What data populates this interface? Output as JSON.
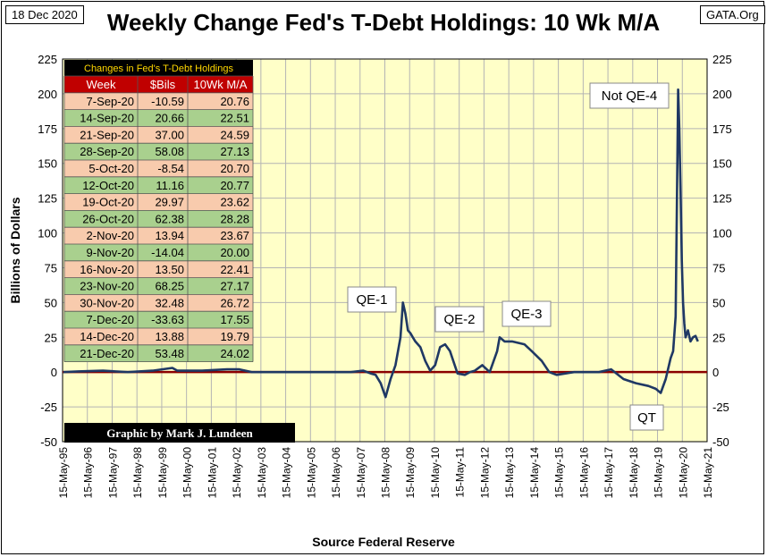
{
  "header": {
    "date": "18 Dec 2020",
    "title": "Weekly Change Fed's T-Debt Holdings: 10 Wk M/A",
    "source_site": "GATA.Org"
  },
  "footer": {
    "source": "Source Federal Reserve"
  },
  "credit": "Graphic by Mark J. Lundeen",
  "colors": {
    "plot_bg": "#ffffc8",
    "grid": "#b4b4b4",
    "line": "#1f3864",
    "zero_line": "#8b0000",
    "table_header_bg": "#000000",
    "table_header_text": "#ffd700",
    "col_head_bg": "#c00000",
    "row_even": "#f8cbad",
    "row_odd": "#a9d08e"
  },
  "table": {
    "title": "Changes in Fed's T-Debt Holdings",
    "columns": [
      "Week",
      "$Bils",
      "10Wk M/A"
    ],
    "rows": [
      [
        "7-Sep-20",
        "-10.59",
        "20.76"
      ],
      [
        "14-Sep-20",
        "20.66",
        "22.51"
      ],
      [
        "21-Sep-20",
        "37.00",
        "24.59"
      ],
      [
        "28-Sep-20",
        "58.08",
        "27.13"
      ],
      [
        "5-Oct-20",
        "-8.54",
        "20.70"
      ],
      [
        "12-Oct-20",
        "11.16",
        "20.77"
      ],
      [
        "19-Oct-20",
        "29.97",
        "23.62"
      ],
      [
        "26-Oct-20",
        "62.38",
        "28.28"
      ],
      [
        "2-Nov-20",
        "13.94",
        "23.67"
      ],
      [
        "9-Nov-20",
        "-14.04",
        "20.00"
      ],
      [
        "16-Nov-20",
        "13.50",
        "22.41"
      ],
      [
        "23-Nov-20",
        "68.25",
        "27.17"
      ],
      [
        "30-Nov-20",
        "32.48",
        "26.72"
      ],
      [
        "7-Dec-20",
        "-33.63",
        "17.55"
      ],
      [
        "14-Dec-20",
        "13.88",
        "19.79"
      ],
      [
        "21-Dec-20",
        "53.48",
        "24.02"
      ]
    ]
  },
  "chart_data": {
    "type": "line",
    "title": "Weekly Change Fed's T-Debt Holdings: 10 Wk M/A",
    "ylabel": "Billions of Dollars",
    "xlabel": "",
    "ylim": [
      -50,
      225
    ],
    "xlim": [
      1995.37,
      2021.37
    ],
    "yticks": [
      -50,
      -25,
      0,
      25,
      50,
      75,
      100,
      125,
      150,
      175,
      200,
      225
    ],
    "ytick_labels": [
      "-50",
      "-25",
      "0",
      "25",
      "50",
      "75",
      "100",
      "125",
      "150",
      "175",
      "200",
      "225"
    ],
    "xtick_labels": [
      "15-May-95",
      "15-May-96",
      "15-May-97",
      "15-May-98",
      "15-May-99",
      "15-May-00",
      "15-May-01",
      "15-May-02",
      "15-May-03",
      "15-May-04",
      "15-May-05",
      "15-May-06",
      "15-May-07",
      "15-May-08",
      "15-May-09",
      "15-May-10",
      "15-May-11",
      "15-May-12",
      "15-May-13",
      "15-May-14",
      "15-May-15",
      "15-May-16",
      "15-May-17",
      "15-May-18",
      "15-May-19",
      "15-May-20",
      "15-May-21"
    ],
    "grid": true,
    "series": [
      {
        "x": [
          1995.4,
          1996.0,
          1997.0,
          1998.0,
          1999.0,
          1999.8,
          2000.0,
          2001.0,
          2002.0,
          2002.5,
          2003.0,
          2004.0,
          2005.0,
          2006.0,
          2007.0,
          2007.5,
          2007.8,
          2008.0,
          2008.2,
          2008.4,
          2008.6,
          2008.8,
          2009.0,
          2009.1,
          2009.2,
          2009.3,
          2009.4,
          2009.5,
          2009.6,
          2009.8,
          2010.0,
          2010.2,
          2010.4,
          2010.6,
          2010.8,
          2011.0,
          2011.3,
          2011.6,
          2011.8,
          2012.0,
          2012.3,
          2012.6,
          2012.9,
          2013.0,
          2013.2,
          2013.5,
          2014.0,
          2014.3,
          2014.7,
          2015.0,
          2015.3,
          2016.0,
          2017.0,
          2017.5,
          2018.0,
          2018.5,
          2019.0,
          2019.3,
          2019.5,
          2019.7,
          2019.9,
          2020.0,
          2020.1,
          2020.15,
          2020.2,
          2020.25,
          2020.3,
          2020.35,
          2020.4,
          2020.45,
          2020.5,
          2020.6,
          2020.7,
          2020.8,
          2020.9,
          2021.0
        ],
        "y": [
          0,
          0.5,
          1,
          0,
          1,
          3,
          1,
          1,
          2,
          2,
          0,
          0,
          0,
          0,
          0,
          1,
          -1,
          -2,
          -8,
          -18,
          -5,
          5,
          25,
          50,
          42,
          30,
          28,
          25,
          22,
          18,
          8,
          1,
          5,
          18,
          20,
          15,
          -1,
          -2,
          0,
          1,
          5,
          0,
          15,
          25,
          22,
          22,
          20,
          15,
          8,
          0,
          -2,
          0,
          0,
          2,
          -5,
          -8,
          -10,
          -12,
          -15,
          -5,
          10,
          15,
          40,
          120,
          203,
          175,
          130,
          80,
          50,
          35,
          25,
          30,
          22,
          25,
          26,
          22
        ]
      }
    ],
    "annotations": [
      {
        "text": "Not QE-4",
        "x": 2020.2,
        "y": 203
      },
      {
        "text": "QE-1",
        "x": 2009.1,
        "y": 50
      },
      {
        "text": "QE-2",
        "x": 2010.8,
        "y": 20
      },
      {
        "text": "QE-3",
        "x": 2013.0,
        "y": 25
      },
      {
        "text": "QT",
        "x": 2019.5,
        "y": -15
      }
    ]
  }
}
